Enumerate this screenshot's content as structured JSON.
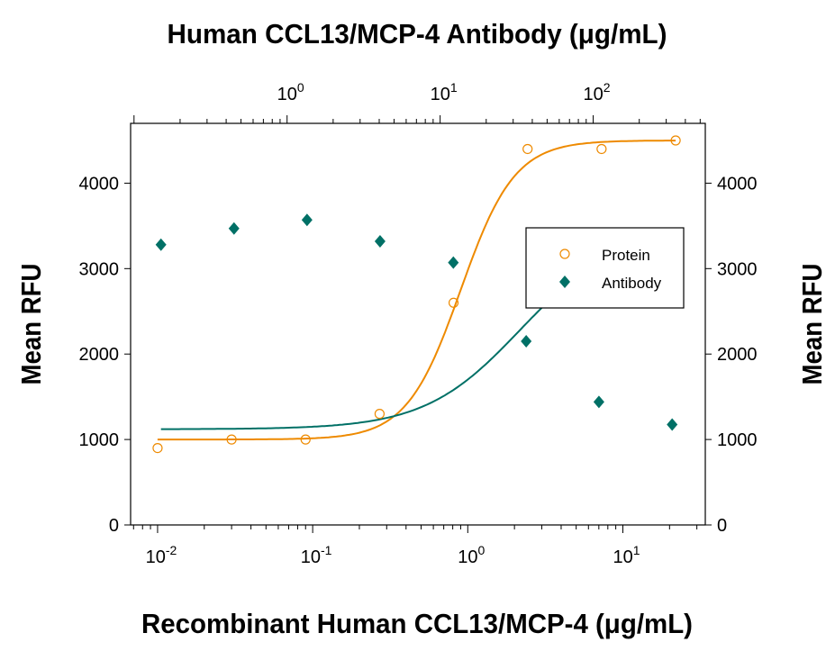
{
  "chart_data": {
    "type": "scatter",
    "top_title": "Human CCL13/MCP-4 Antibody (μg/mL)",
    "xlabel": "Recombinant Human CCL13/MCP-4 (μg/mL)",
    "ylabel_left": "Mean RFU",
    "ylabel_right": "Mean RFU",
    "x_scale": "log",
    "x_range_bottom": [
      0.0067,
      34
    ],
    "x_range_top": [
      0.095,
      540
    ],
    "y_range": [
      0,
      4700
    ],
    "x_ticks_bottom": [
      {
        "base": "10",
        "exp": "-2",
        "value": 0.01
      },
      {
        "base": "10",
        "exp": "-1",
        "value": 0.1
      },
      {
        "base": "10",
        "exp": "0",
        "value": 1
      },
      {
        "base": "10",
        "exp": "1",
        "value": 10
      }
    ],
    "x_ticks_top": [
      {
        "base": "10",
        "exp": "0",
        "value": 1
      },
      {
        "base": "10",
        "exp": "1",
        "value": 10
      },
      {
        "base": "10",
        "exp": "2",
        "value": 100
      }
    ],
    "y_ticks": [
      "0",
      "1000",
      "2000",
      "3000",
      "4000"
    ],
    "grid": false,
    "legend_position": "right",
    "series": [
      {
        "name": "Protein",
        "axis": "bottom",
        "marker": "open-circle",
        "color": "#ee8a00",
        "x": [
          0.01,
          0.03,
          0.09,
          0.27,
          0.81,
          2.43,
          7.29,
          21.9
        ],
        "y": [
          900,
          1000,
          1000,
          1300,
          2600,
          4400,
          4400,
          4500
        ],
        "fit": {
          "bottom": 1000,
          "top": 4500,
          "ec50": 0.9,
          "hill": 2.5
        }
      },
      {
        "name": "Antibody",
        "axis": "top",
        "marker": "filled-diamond",
        "color": "#007066",
        "x": [
          0.15,
          0.45,
          1.35,
          4.05,
          12.2,
          36.5,
          109,
          328
        ],
        "y": [
          3280,
          3470,
          3570,
          3320,
          3070,
          2150,
          1440,
          1175
        ],
        "fit": {
          "bottom": 1120,
          "top": 3430,
          "ec50": 33,
          "hill": 1.4
        }
      }
    ]
  }
}
